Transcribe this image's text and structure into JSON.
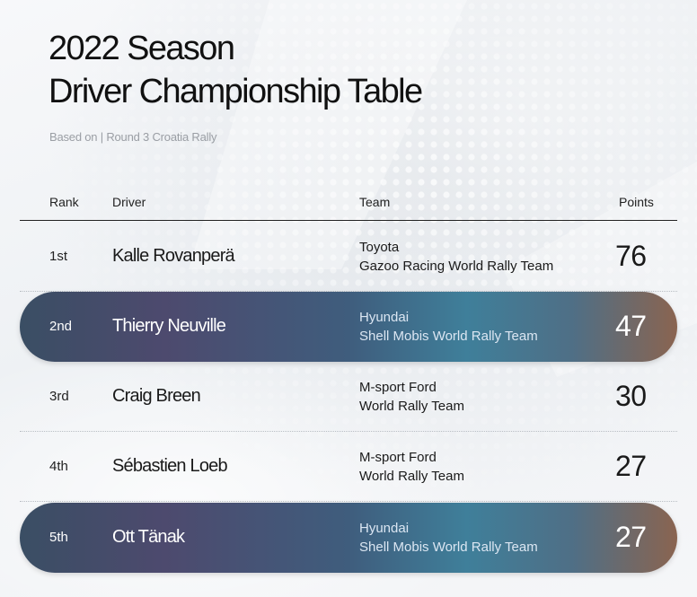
{
  "title_line1": "2022 Season",
  "title_line2": "Driver Championship Table",
  "subtitle": "Based on | Round 3 Croatia Rally",
  "columns": {
    "rank": "Rank",
    "driver": "Driver",
    "team": "Team",
    "points": "Points"
  },
  "rows": [
    {
      "rank": "1st",
      "driver": "Kalle Rovanperä",
      "team_line1": "Toyota",
      "team_line2": "Gazoo Racing World Rally Team",
      "points": "76"
    },
    {
      "rank": "2nd",
      "driver": "Thierry Neuville",
      "team_line1": "Hyundai",
      "team_line2": "Shell Mobis World Rally Team",
      "points": "47"
    },
    {
      "rank": "3rd",
      "driver": "Craig Breen",
      "team_line1": "M-sport Ford",
      "team_line2": "World Rally Team",
      "points": "30"
    },
    {
      "rank": "4th",
      "driver": "Sébastien Loeb",
      "team_line1": "M-sport Ford",
      "team_line2": "World Rally Team",
      "points": "27"
    },
    {
      "rank": "5th",
      "driver": "Ott Tänak",
      "team_line1": "Hyundai",
      "team_line2": "Shell Mobis World Rally Team",
      "points": "27"
    }
  ]
}
